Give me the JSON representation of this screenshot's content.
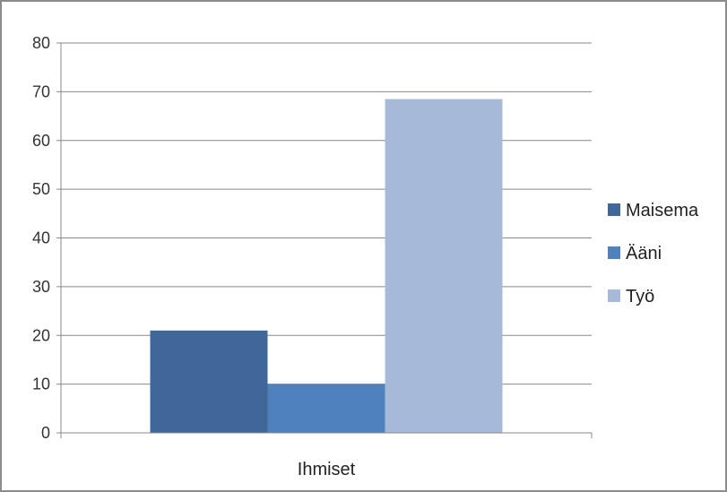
{
  "chart_data": {
    "type": "bar",
    "categories": [
      "Ihmiset"
    ],
    "series": [
      {
        "name": "Maisema",
        "values": [
          21
        ],
        "color": "#3f6899"
      },
      {
        "name": "Ääni",
        "values": [
          10
        ],
        "color": "#4f81bd"
      },
      {
        "name": "Työ",
        "values": [
          68.5
        ],
        "color": "#a7b9d8"
      }
    ],
    "ylim": [
      0,
      80
    ],
    "yticks": [
      "0",
      "10",
      "20",
      "30",
      "40",
      "50",
      "60",
      "70",
      "80"
    ],
    "grid": true,
    "legend_position": "right",
    "gridline_color": "#888888",
    "axis_color": "#888888"
  }
}
